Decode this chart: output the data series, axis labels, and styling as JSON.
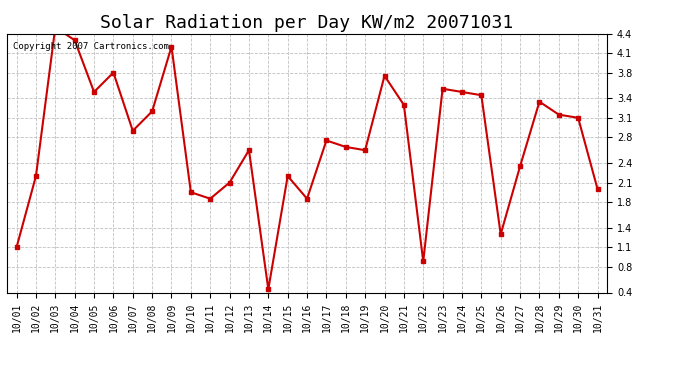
{
  "title": "Solar Radiation per Day KW/m2 20071031",
  "copyright_text": "Copyright 2007 Cartronics.com",
  "labels": [
    "10/01",
    "10/02",
    "10/03",
    "10/04",
    "10/05",
    "10/06",
    "10/07",
    "10/08",
    "10/09",
    "10/10",
    "10/11",
    "10/12",
    "10/13",
    "10/14",
    "10/15",
    "10/16",
    "10/17",
    "10/18",
    "10/19",
    "10/20",
    "10/21",
    "10/22",
    "10/23",
    "10/24",
    "10/25",
    "10/26",
    "10/27",
    "10/28",
    "10/29",
    "10/30",
    "10/31"
  ],
  "values": [
    1.1,
    2.2,
    4.5,
    4.3,
    3.5,
    3.8,
    2.9,
    3.2,
    4.2,
    1.95,
    1.85,
    2.1,
    2.6,
    0.45,
    2.2,
    1.85,
    2.75,
    2.65,
    2.6,
    3.75,
    3.3,
    0.88,
    3.55,
    3.5,
    3.45,
    1.3,
    2.35,
    3.35,
    3.15,
    3.1,
    2.0
  ],
  "line_color": "#cc0000",
  "marker": "s",
  "marker_size": 3,
  "line_width": 1.5,
  "bg_color": "#ffffff",
  "plot_bg_color": "#ffffff",
  "grid_color": "#c0c0c0",
  "grid_style": "--",
  "ylim": [
    0.4,
    4.4
  ],
  "yticks": [
    0.4,
    0.8,
    1.1,
    1.4,
    1.8,
    2.1,
    2.4,
    2.8,
    3.1,
    3.4,
    3.8,
    4.1,
    4.4
  ],
  "title_fontsize": 13,
  "tick_fontsize": 7,
  "copyright_fontsize": 6.5
}
